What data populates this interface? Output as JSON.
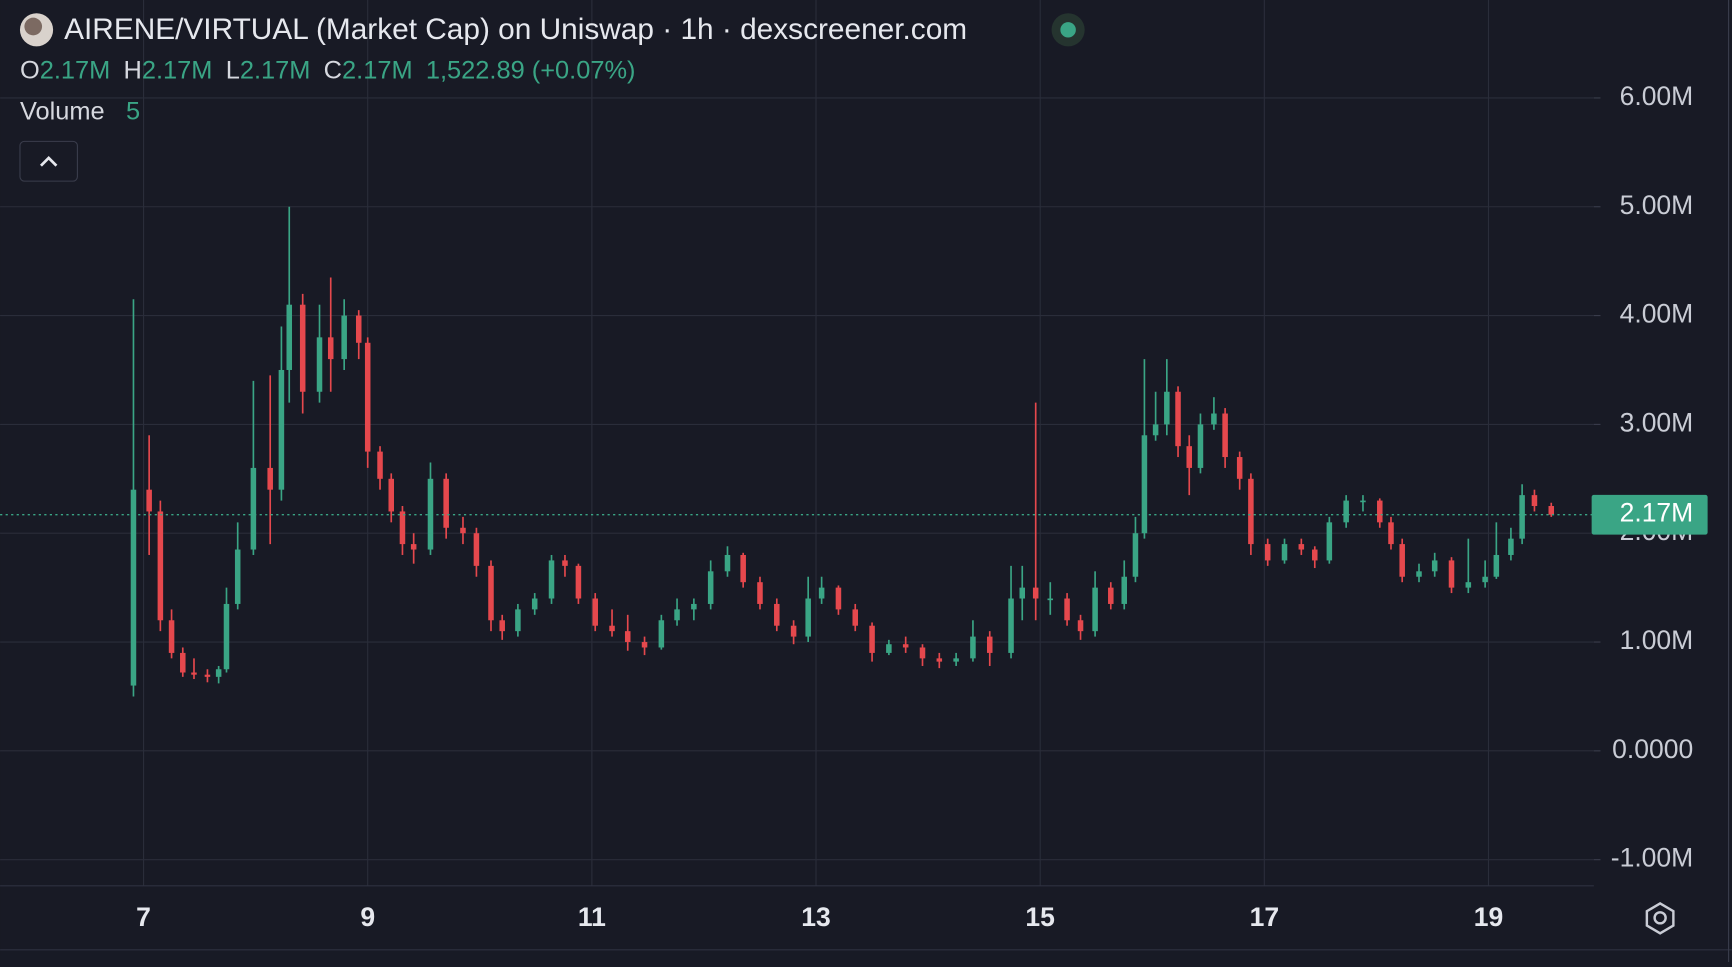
{
  "chart_data": {
    "type": "candlestick",
    "title": "AIRENE/VIRTUAL (Market Cap) on Uniswap · 1h · dexscreener.com",
    "ohlc_legend": [
      {
        "label": "O",
        "value": "2.17M"
      },
      {
        "label": "H",
        "value": "2.17M"
      },
      {
        "label": "L",
        "value": "2.17M"
      },
      {
        "label": "C",
        "value": "2.17M"
      }
    ],
    "change": "1,522.89 (+0.07%)",
    "volume_label": "Volume",
    "volume_period": "5",
    "up_color": "#3aa585",
    "down_color": "#e5484d",
    "x": [
      6.91,
      7.05,
      7.15,
      7.25,
      7.35,
      7.45,
      7.57,
      7.67,
      7.74,
      7.84,
      7.98,
      8.13,
      8.23,
      8.3,
      8.42,
      8.57,
      8.67,
      8.79,
      8.92,
      9.0,
      9.11,
      9.21,
      9.31,
      9.41,
      9.56,
      9.7,
      9.85,
      9.97,
      10.1,
      10.2,
      10.34,
      10.49,
      10.64,
      10.76,
      10.88,
      11.03,
      11.18,
      11.32,
      11.47,
      11.62,
      11.76,
      11.91,
      12.06,
      12.21,
      12.35,
      12.5,
      12.65,
      12.8,
      12.93,
      13.05,
      13.2,
      13.35,
      13.5,
      13.65,
      13.8,
      13.95,
      14.1,
      14.25,
      14.4,
      14.55,
      14.74,
      14.84,
      14.96,
      15.09,
      15.24,
      15.36,
      15.49,
      15.63,
      15.75,
      15.85,
      15.93,
      16.03,
      16.13,
      16.23,
      16.33,
      16.43,
      16.55,
      16.65,
      16.78,
      16.88,
      17.03,
      17.18,
      17.33,
      17.45,
      17.58,
      17.73,
      17.88,
      18.03,
      18.13,
      18.23,
      18.38,
      18.52,
      18.67,
      18.82,
      18.97,
      19.07,
      19.2,
      19.3,
      19.41,
      19.56
    ],
    "candles": [
      [
        0.6,
        4.15,
        0.5,
        2.4
      ],
      [
        2.4,
        2.9,
        1.8,
        2.2
      ],
      [
        2.2,
        2.3,
        1.1,
        1.2
      ],
      [
        1.2,
        1.3,
        0.85,
        0.9
      ],
      [
        0.9,
        0.95,
        0.68,
        0.72
      ],
      [
        0.72,
        0.85,
        0.66,
        0.7
      ],
      [
        0.7,
        0.75,
        0.63,
        0.68
      ],
      [
        0.68,
        0.78,
        0.62,
        0.75
      ],
      [
        0.75,
        1.5,
        0.72,
        1.35
      ],
      [
        1.35,
        2.1,
        1.3,
        1.85
      ],
      [
        1.85,
        3.4,
        1.8,
        2.6
      ],
      [
        2.6,
        3.45,
        1.9,
        2.4
      ],
      [
        2.4,
        3.9,
        2.3,
        3.5
      ],
      [
        3.5,
        5.0,
        3.2,
        4.1
      ],
      [
        4.1,
        4.2,
        3.1,
        3.3
      ],
      [
        3.3,
        4.1,
        3.2,
        3.8
      ],
      [
        3.8,
        4.35,
        3.3,
        3.6
      ],
      [
        3.6,
        4.15,
        3.5,
        4.0
      ],
      [
        4.0,
        4.05,
        3.6,
        3.75
      ],
      [
        3.75,
        3.8,
        2.6,
        2.75
      ],
      [
        2.75,
        2.8,
        2.4,
        2.5
      ],
      [
        2.5,
        2.55,
        2.1,
        2.2
      ],
      [
        2.2,
        2.25,
        1.8,
        1.9
      ],
      [
        1.9,
        2.0,
        1.72,
        1.85
      ],
      [
        1.85,
        2.65,
        1.8,
        2.5
      ],
      [
        2.5,
        2.55,
        1.95,
        2.05
      ],
      [
        2.05,
        2.15,
        1.9,
        2.0
      ],
      [
        2.0,
        2.05,
        1.6,
        1.7
      ],
      [
        1.7,
        1.75,
        1.1,
        1.2
      ],
      [
        1.2,
        1.25,
        1.02,
        1.1
      ],
      [
        1.1,
        1.35,
        1.05,
        1.3
      ],
      [
        1.3,
        1.45,
        1.25,
        1.4
      ],
      [
        1.4,
        1.8,
        1.35,
        1.75
      ],
      [
        1.75,
        1.8,
        1.6,
        1.7
      ],
      [
        1.7,
        1.72,
        1.35,
        1.4
      ],
      [
        1.4,
        1.45,
        1.1,
        1.15
      ],
      [
        1.15,
        1.3,
        1.05,
        1.1
      ],
      [
        1.1,
        1.25,
        0.92,
        1.0
      ],
      [
        1.0,
        1.05,
        0.88,
        0.95
      ],
      [
        0.95,
        1.25,
        0.93,
        1.2
      ],
      [
        1.2,
        1.4,
        1.15,
        1.3
      ],
      [
        1.3,
        1.4,
        1.2,
        1.35
      ],
      [
        1.35,
        1.75,
        1.3,
        1.65
      ],
      [
        1.65,
        1.88,
        1.6,
        1.8
      ],
      [
        1.8,
        1.82,
        1.5,
        1.55
      ],
      [
        1.55,
        1.6,
        1.3,
        1.35
      ],
      [
        1.35,
        1.4,
        1.1,
        1.15
      ],
      [
        1.15,
        1.2,
        0.98,
        1.05
      ],
      [
        1.05,
        1.6,
        1.0,
        1.4
      ],
      [
        1.4,
        1.6,
        1.35,
        1.5
      ],
      [
        1.5,
        1.52,
        1.25,
        1.3
      ],
      [
        1.3,
        1.35,
        1.1,
        1.15
      ],
      [
        1.15,
        1.18,
        0.82,
        0.9
      ],
      [
        0.9,
        1.02,
        0.88,
        0.98
      ],
      [
        0.98,
        1.05,
        0.9,
        0.95
      ],
      [
        0.95,
        0.98,
        0.78,
        0.85
      ],
      [
        0.85,
        0.9,
        0.76,
        0.82
      ],
      [
        0.82,
        0.9,
        0.78,
        0.85
      ],
      [
        0.85,
        1.2,
        0.82,
        1.05
      ],
      [
        1.05,
        1.1,
        0.78,
        0.9
      ],
      [
        0.9,
        1.7,
        0.85,
        1.4
      ],
      [
        1.4,
        1.7,
        1.2,
        1.5
      ],
      [
        1.5,
        3.2,
        1.2,
        1.4
      ],
      [
        1.4,
        1.55,
        1.25,
        1.4
      ],
      [
        1.4,
        1.45,
        1.15,
        1.2
      ],
      [
        1.2,
        1.25,
        1.02,
        1.1
      ],
      [
        1.1,
        1.65,
        1.05,
        1.5
      ],
      [
        1.5,
        1.55,
        1.3,
        1.35
      ],
      [
        1.35,
        1.75,
        1.3,
        1.6
      ],
      [
        1.6,
        2.15,
        1.55,
        2.0
      ],
      [
        2.0,
        3.6,
        1.95,
        2.9
      ],
      [
        2.9,
        3.3,
        2.85,
        3.0
      ],
      [
        3.0,
        3.6,
        2.9,
        3.3
      ],
      [
        3.3,
        3.35,
        2.7,
        2.8
      ],
      [
        2.8,
        2.9,
        2.35,
        2.6
      ],
      [
        2.6,
        3.1,
        2.55,
        3.0
      ],
      [
        3.0,
        3.25,
        2.95,
        3.1
      ],
      [
        3.1,
        3.15,
        2.6,
        2.7
      ],
      [
        2.7,
        2.75,
        2.4,
        2.5
      ],
      [
        2.5,
        2.55,
        1.8,
        1.9
      ],
      [
        1.9,
        1.95,
        1.7,
        1.75
      ],
      [
        1.75,
        1.95,
        1.72,
        1.9
      ],
      [
        1.9,
        1.95,
        1.8,
        1.85
      ],
      [
        1.85,
        1.88,
        1.68,
        1.75
      ],
      [
        1.75,
        2.15,
        1.72,
        2.1
      ],
      [
        2.1,
        2.35,
        2.05,
        2.3
      ],
      [
        2.3,
        2.35,
        2.2,
        2.3
      ],
      [
        2.3,
        2.32,
        2.05,
        2.1
      ],
      [
        2.1,
        2.15,
        1.85,
        1.9
      ],
      [
        1.9,
        1.95,
        1.55,
        1.6
      ],
      [
        1.6,
        1.72,
        1.55,
        1.65
      ],
      [
        1.65,
        1.82,
        1.6,
        1.75
      ],
      [
        1.75,
        1.78,
        1.45,
        1.5
      ],
      [
        1.5,
        1.95,
        1.45,
        1.55
      ],
      [
        1.55,
        1.75,
        1.5,
        1.6
      ],
      [
        1.6,
        2.1,
        1.58,
        1.8
      ],
      [
        1.8,
        2.05,
        1.75,
        1.95
      ],
      [
        1.95,
        2.45,
        1.9,
        2.35
      ],
      [
        2.35,
        2.4,
        2.2,
        2.25
      ],
      [
        2.25,
        2.28,
        2.15,
        2.17
      ]
    ],
    "xlim": [
      5.72,
      19.94
    ],
    "xticks": [
      7,
      9,
      11,
      13,
      15,
      17,
      19
    ],
    "ylim": [
      -1.24,
      6.9
    ],
    "yticks": [
      {
        "value": -1,
        "label": "-1.00M"
      },
      {
        "value": 0,
        "label": "0.0000"
      },
      {
        "value": 1,
        "label": "1.00M"
      },
      {
        "value": 2,
        "label": "2.00M"
      },
      {
        "value": 3,
        "label": "3.00M"
      },
      {
        "value": 4,
        "label": "4.00M"
      },
      {
        "value": 5,
        "label": "5.00M"
      },
      {
        "value": 6,
        "label": "6.00M"
      }
    ],
    "last_price": {
      "value": 2.17,
      "label": "2.17M"
    },
    "grid": true
  }
}
